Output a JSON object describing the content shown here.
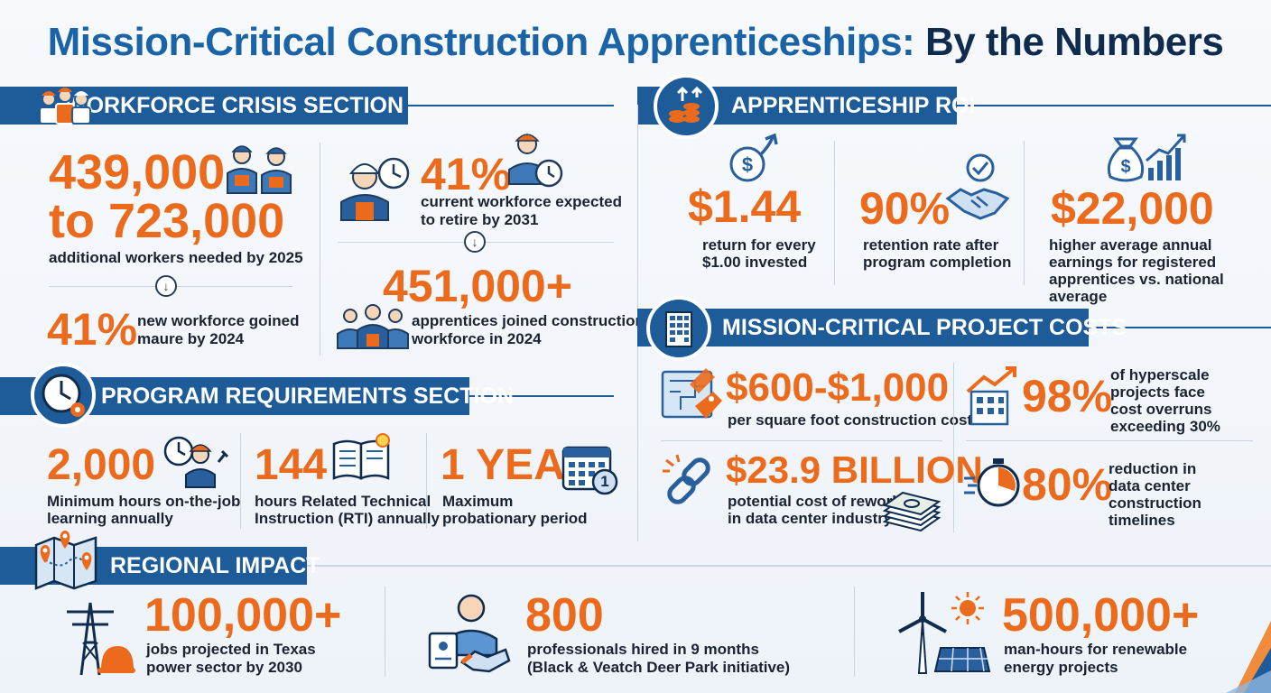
{
  "title": {
    "part1": "Mission-Critical Construction Apprenticeships:",
    "part2": "By the Numbers"
  },
  "workforce": {
    "heading": "WORKFORCE CRISIS SECTION",
    "workers_needed_line1": "439,000",
    "workers_needed_line2": "to 723,000",
    "workers_needed_desc": "additional workers needed by 2025",
    "gained_value": "41%",
    "gained_desc_line1": "new workforce goined",
    "gained_desc_line2": "maure by 2024",
    "retire_value": "41%",
    "retire_desc_line1": "current workforce expected",
    "retire_desc_line2": "to retire by 2031",
    "apprentices_value": "451,000+",
    "apprentices_desc_line1": "apprentices joined construction",
    "apprentices_desc_line2": "workforce in 2024"
  },
  "roi": {
    "heading": "APPRENTICESHIP ROI",
    "return_value": "$1.44",
    "return_desc_line1": "return for every",
    "return_desc_line2": "$1.00 invested",
    "retention_value": "90%",
    "retention_desc_line1": "retention rate after",
    "retention_desc_line2": "program completion",
    "earnings_value": "$22,000",
    "earnings_desc_line1": "higher average annual",
    "earnings_desc_line2": "earnings for registered",
    "earnings_desc_line3": "apprentices vs. national average"
  },
  "program": {
    "heading": "PROGRAM REQUIREMENTS SECTION",
    "hours_value": "2,000",
    "hours_desc_line1": "Minimum hours on-the-job",
    "hours_desc_line2": "learning annually",
    "rti_value": "144",
    "rti_desc_line1": "hours Related Technical",
    "rti_desc_line2": "Instruction (RTI) annually",
    "probation_value": "1 YEAR",
    "probation_desc_line1": "Maximum",
    "probation_desc_line2": "probationary period",
    "calendar_number": "1"
  },
  "costs": {
    "heading": "MISSION-CRITICAL PROJECT COSTS",
    "sqft_value": "$600-$1,000",
    "sqft_desc": "per square foot construction costs",
    "overrun_value": "98%",
    "overrun_desc_line1": "of hyperscale",
    "overrun_desc_line2": "projects face",
    "overrun_desc_line3": "cost overruns",
    "overrun_desc_line4": "exceeding 30%",
    "rework_value": "$23.9 BILLION",
    "rework_desc_line1": "potential cost of rework",
    "rework_desc_line2": "in data center industry",
    "timeline_value": "80%",
    "timeline_desc_line1": "reduction in",
    "timeline_desc_line2": "data center",
    "timeline_desc_line3": "construction timelines"
  },
  "regional": {
    "heading": "REGIONAL IMPACT",
    "texas_value": "100,000+",
    "texas_desc_line1": "jobs projected in Texas",
    "texas_desc_line2": "power sector by 2030",
    "hired_value": "800",
    "hired_desc_line1": "professionals hired in 9 months",
    "hired_desc_line2": "(Black & Veatch Deer Park initiative)",
    "manhours_value": "500,000+",
    "manhours_desc_line1": "man-hours for renewable",
    "manhours_desc_line2": "energy projects"
  },
  "colors": {
    "accent_orange": "#ec6a1c",
    "brand_blue": "#1e5b99",
    "title_blue": "#1a63a6",
    "navy": "#0f2c4e"
  },
  "icons": [
    "workers-icon",
    "clock-icon",
    "coins-growth-icon",
    "dollar-growth-icon",
    "handshake-icon",
    "money-bag-chart-icon",
    "building-icon",
    "blueprint-icon",
    "chart-building-icon",
    "broken-link-icon",
    "stopwatch-icon",
    "map-pin-icon",
    "power-tower-icon",
    "hard-hat-icon",
    "id-badge-icon",
    "wind-turbine-icon",
    "solar-panel-icon",
    "sun-icon",
    "calendar-icon",
    "book-icon",
    "wrench-icon",
    "money-stack-icon"
  ]
}
